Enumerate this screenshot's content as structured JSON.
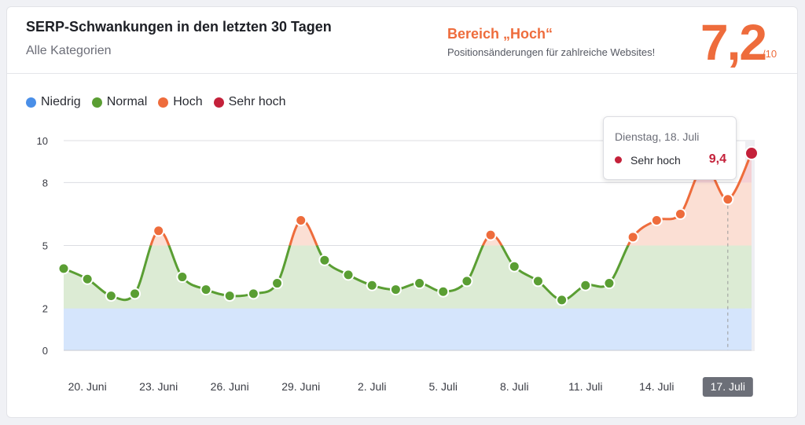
{
  "header": {
    "title": "SERP-Schwankungen in den letzten 30 Tagen",
    "subtitle": "Alle Kategorien",
    "range_label": "Bereich „Hoch“",
    "range_desc": "Positionsänderungen für zahlreiche Websites!",
    "score": "7,2",
    "score_max": "/10"
  },
  "legend": [
    {
      "label": "Niedrig",
      "color": "#4a8fe8"
    },
    {
      "label": "Normal",
      "color": "#5a9e33"
    },
    {
      "label": "Hoch",
      "color": "#ee6c3c"
    },
    {
      "label": "Sehr hoch",
      "color": "#c4213a"
    }
  ],
  "tooltip": {
    "date": "Dienstag, 18. Juli",
    "category": "Sehr hoch",
    "value": "9,4"
  },
  "chart_data": {
    "type": "line",
    "title": "SERP-Schwankungen in den letzten 30 Tagen",
    "ylim": [
      0,
      10
    ],
    "yticks": [
      0,
      2,
      5,
      8,
      10
    ],
    "thresholds": {
      "low": 2,
      "normal": 5,
      "high": 8
    },
    "xtick_labels": [
      "20. Juni",
      "23. Juni",
      "26. Juni",
      "29. Juni",
      "2. Juli",
      "5. Juli",
      "8. Juli",
      "11. Juli",
      "14. Juli",
      "17. Juli"
    ],
    "xtick_index": [
      1,
      4,
      7,
      10,
      13,
      16,
      19,
      22,
      25,
      28
    ],
    "selected_label": "17. Juli",
    "values": [
      3.9,
      3.4,
      2.6,
      2.7,
      5.7,
      3.5,
      2.9,
      2.6,
      2.7,
      3.2,
      6.2,
      4.3,
      3.6,
      3.1,
      2.9,
      3.2,
      2.8,
      3.3,
      5.5,
      4.0,
      3.3,
      2.4,
      3.1,
      3.2,
      5.4,
      6.2,
      6.5,
      8.8,
      7.2,
      9.4
    ]
  }
}
